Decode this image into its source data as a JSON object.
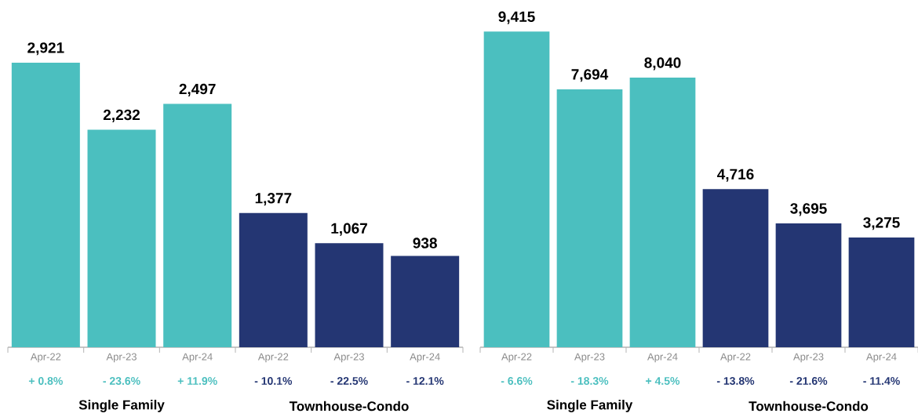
{
  "chart_data": [
    {
      "type": "bar",
      "categories": [
        "Apr-22",
        "Apr-23",
        "Apr-24",
        "Apr-22",
        "Apr-23",
        "Apr-24"
      ],
      "values": [
        2921,
        2232,
        2497,
        1377,
        1067,
        938
      ],
      "colors": [
        "#4bbfbf",
        "#4bbfbf",
        "#4bbfbf",
        "#243673",
        "#243673",
        "#243673"
      ],
      "value_labels": [
        "2,921",
        "2,232",
        "2,497",
        "1,377",
        "1,067",
        "938"
      ],
      "annotations": [
        "+ 0.8%",
        "- 23.6%",
        "+ 11.9%",
        "- 10.1%",
        "- 22.5%",
        "- 12.1%",
        "Single Family",
        "Townhouse-Condo"
      ]
    },
    {
      "type": "bar",
      "categories": [
        "Apr-22",
        "Apr-23",
        "Apr-24",
        "Apr-22",
        "Apr-23",
        "Apr-24"
      ],
      "values": [
        9415,
        7694,
        8040,
        4716,
        3695,
        3275
      ],
      "colors": [
        "#4bbfbf",
        "#4bbfbf",
        "#4bbfbf",
        "#243673",
        "#243673",
        "#243673"
      ],
      "value_labels": [
        "9,415",
        "7,694",
        "8,040",
        "4,716",
        "3,695",
        "3,275"
      ],
      "annotations": [
        "- 6.6%",
        "- 18.3%",
        "+ 4.5%",
        "- 13.8%",
        "- 21.6%",
        "- 11.4%",
        "Single Family",
        "Townhouse-Condo"
      ]
    }
  ]
}
